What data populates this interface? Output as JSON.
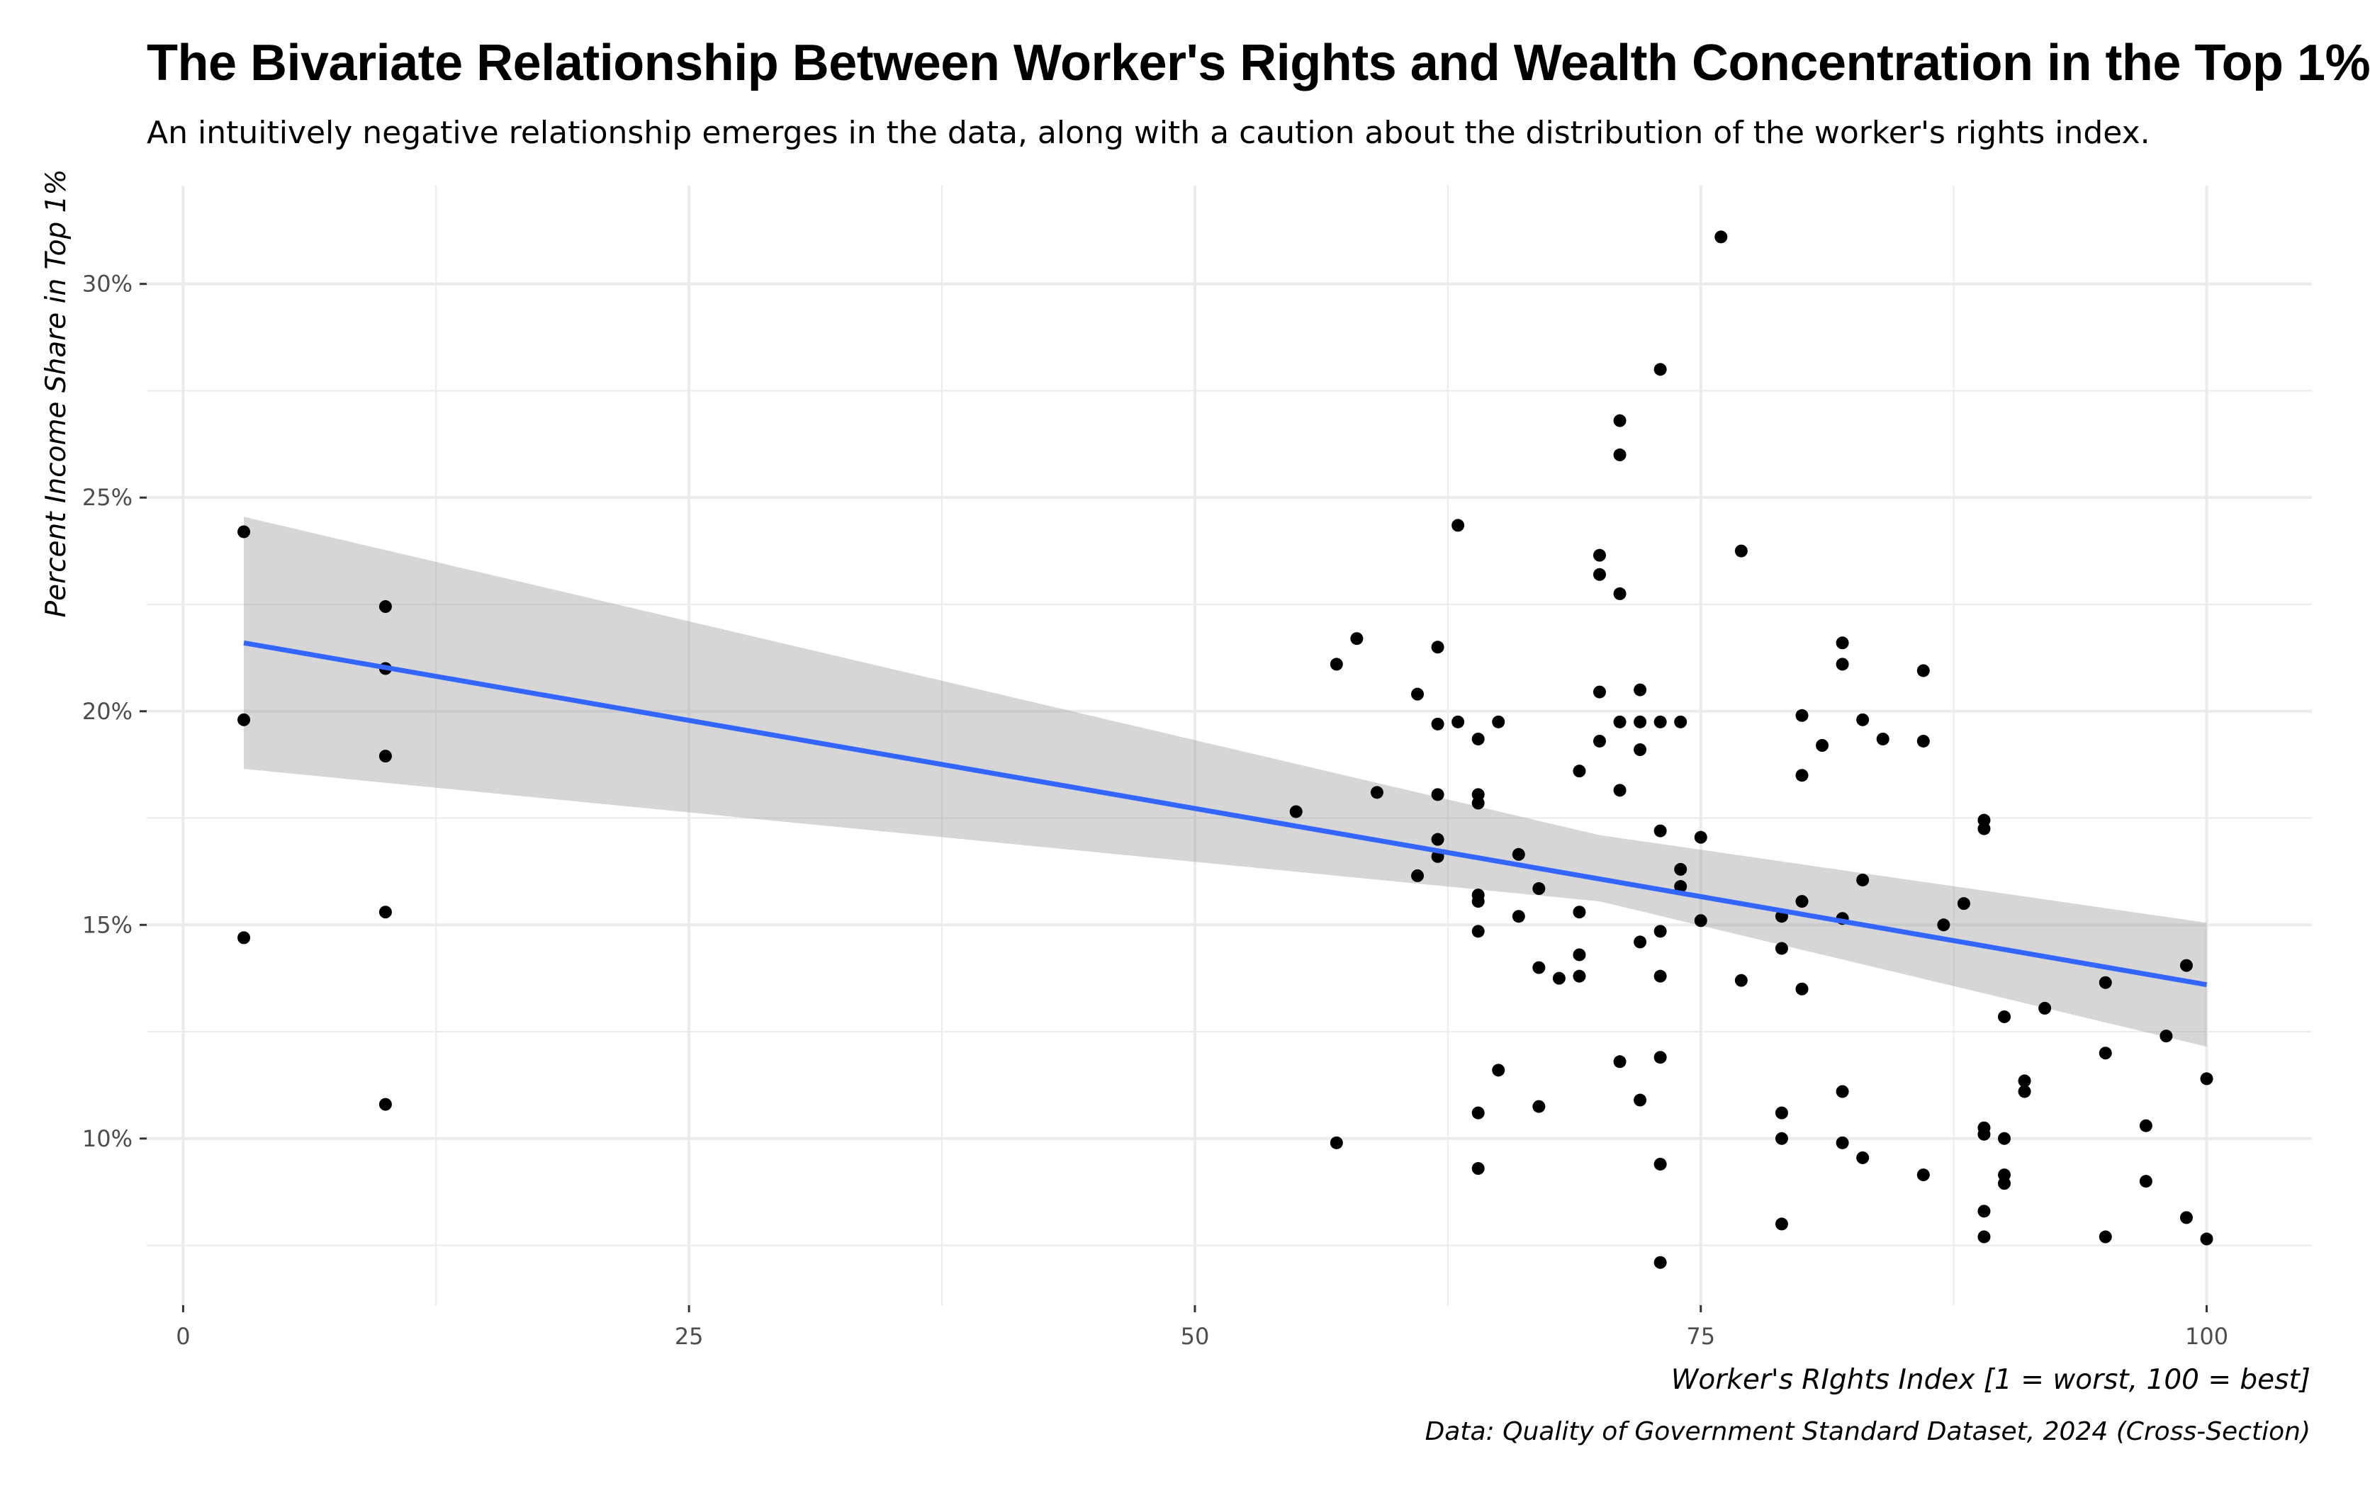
{
  "chart_data": {
    "type": "scatter",
    "title": "The Bivariate Relationship Between Worker's Rights and Wealth Concentration in the Top 1%",
    "subtitle": "An intuitively negative relationship emerges in the data, along with a caution about the distribution of the worker's rights index.",
    "xlabel": "Worker's RIghts Index [1 = worst, 100 = best]",
    "ylabel": "Percent Income Share in Top 1%",
    "caption": "Data: Quality of Government Standard Dataset, 2024 (Cross-Section)",
    "xlim": [
      -1.8,
      105.2
    ],
    "ylim": [
      6.1,
      32.3
    ],
    "xticks": [
      0,
      25,
      50,
      75,
      100
    ],
    "xtick_labels": [
      "0",
      "25",
      "50",
      "75",
      "100"
    ],
    "yticks": [
      10,
      15,
      20,
      25,
      30
    ],
    "ytick_labels": [
      "10%",
      "15%",
      "20%",
      "25%",
      "30%"
    ],
    "grid": true,
    "colors": {
      "points": "#000000",
      "fit_line": "#3366FF",
      "ribbon": "#999999",
      "grid": "#EBEBEB",
      "axis_text": "#4D4D4D"
    },
    "fit": {
      "method": "linear",
      "x": [
        3,
        100
      ],
      "y": [
        21.6,
        13.6
      ],
      "ci_lower": [
        18.65,
        12.15
      ],
      "ci_upper": [
        24.55,
        15.05
      ],
      "ci_mid_x": 70,
      "ci_mid_lower": 15.55,
      "ci_mid_upper": 17.1
    },
    "points": [
      {
        "x": 3,
        "y": 24.2
      },
      {
        "x": 3,
        "y": 19.8
      },
      {
        "x": 3,
        "y": 14.7
      },
      {
        "x": 10,
        "y": 22.45
      },
      {
        "x": 10,
        "y": 21.0
      },
      {
        "x": 10,
        "y": 18.95
      },
      {
        "x": 10,
        "y": 15.3
      },
      {
        "x": 10,
        "y": 10.8
      },
      {
        "x": 55,
        "y": 17.65
      },
      {
        "x": 57,
        "y": 21.1
      },
      {
        "x": 57,
        "y": 9.9
      },
      {
        "x": 58,
        "y": 21.7
      },
      {
        "x": 59,
        "y": 18.1
      },
      {
        "x": 61,
        "y": 20.4
      },
      {
        "x": 61,
        "y": 16.15
      },
      {
        "x": 62,
        "y": 21.5
      },
      {
        "x": 62,
        "y": 19.7
      },
      {
        "x": 62,
        "y": 18.05
      },
      {
        "x": 62,
        "y": 17.0
      },
      {
        "x": 62,
        "y": 16.6
      },
      {
        "x": 63,
        "y": 24.35
      },
      {
        "x": 63,
        "y": 19.75
      },
      {
        "x": 64,
        "y": 19.35
      },
      {
        "x": 64,
        "y": 18.05
      },
      {
        "x": 64,
        "y": 17.85
      },
      {
        "x": 64,
        "y": 15.7
      },
      {
        "x": 64,
        "y": 15.55
      },
      {
        "x": 64,
        "y": 14.85
      },
      {
        "x": 64,
        "y": 10.6
      },
      {
        "x": 64,
        "y": 9.3
      },
      {
        "x": 65,
        "y": 19.75
      },
      {
        "x": 65,
        "y": 11.6
      },
      {
        "x": 66,
        "y": 16.65
      },
      {
        "x": 66,
        "y": 15.2
      },
      {
        "x": 67,
        "y": 15.85
      },
      {
        "x": 67,
        "y": 14.0
      },
      {
        "x": 67,
        "y": 10.75
      },
      {
        "x": 68,
        "y": 13.75
      },
      {
        "x": 69,
        "y": 18.6
      },
      {
        "x": 69,
        "y": 15.3
      },
      {
        "x": 69,
        "y": 14.3
      },
      {
        "x": 69,
        "y": 13.8
      },
      {
        "x": 70,
        "y": 23.65
      },
      {
        "x": 70,
        "y": 23.2
      },
      {
        "x": 70,
        "y": 20.45
      },
      {
        "x": 70,
        "y": 19.3
      },
      {
        "x": 71,
        "y": 26.8
      },
      {
        "x": 71,
        "y": 26.0
      },
      {
        "x": 71,
        "y": 22.75
      },
      {
        "x": 71,
        "y": 19.75
      },
      {
        "x": 71,
        "y": 18.15
      },
      {
        "x": 71,
        "y": 11.8
      },
      {
        "x": 72,
        "y": 20.5
      },
      {
        "x": 72,
        "y": 19.75
      },
      {
        "x": 72,
        "y": 19.1
      },
      {
        "x": 72,
        "y": 14.6
      },
      {
        "x": 72,
        "y": 10.9
      },
      {
        "x": 73,
        "y": 28.0
      },
      {
        "x": 73,
        "y": 19.75
      },
      {
        "x": 73,
        "y": 17.2
      },
      {
        "x": 73,
        "y": 14.85
      },
      {
        "x": 73,
        "y": 13.8
      },
      {
        "x": 73,
        "y": 11.9
      },
      {
        "x": 73,
        "y": 9.4
      },
      {
        "x": 73,
        "y": 7.1
      },
      {
        "x": 74,
        "y": 19.75
      },
      {
        "x": 74,
        "y": 16.3
      },
      {
        "x": 74,
        "y": 15.9
      },
      {
        "x": 75,
        "y": 17.05
      },
      {
        "x": 75,
        "y": 15.1
      },
      {
        "x": 76,
        "y": 31.1
      },
      {
        "x": 77,
        "y": 23.75
      },
      {
        "x": 77,
        "y": 13.7
      },
      {
        "x": 79,
        "y": 15.2
      },
      {
        "x": 79,
        "y": 14.45
      },
      {
        "x": 79,
        "y": 10.6
      },
      {
        "x": 79,
        "y": 10.0
      },
      {
        "x": 79,
        "y": 8.0
      },
      {
        "x": 80,
        "y": 19.9
      },
      {
        "x": 80,
        "y": 18.5
      },
      {
        "x": 80,
        "y": 15.55
      },
      {
        "x": 80,
        "y": 13.5
      },
      {
        "x": 81,
        "y": 19.2
      },
      {
        "x": 82,
        "y": 21.6
      },
      {
        "x": 82,
        "y": 21.1
      },
      {
        "x": 82,
        "y": 15.15
      },
      {
        "x": 82,
        "y": 11.1
      },
      {
        "x": 82,
        "y": 9.9
      },
      {
        "x": 83,
        "y": 19.8
      },
      {
        "x": 83,
        "y": 16.05
      },
      {
        "x": 83,
        "y": 9.55
      },
      {
        "x": 84,
        "y": 19.35
      },
      {
        "x": 86,
        "y": 20.95
      },
      {
        "x": 86,
        "y": 19.3
      },
      {
        "x": 86,
        "y": 9.15
      },
      {
        "x": 87,
        "y": 15.0
      },
      {
        "x": 88,
        "y": 15.5
      },
      {
        "x": 89,
        "y": 17.45
      },
      {
        "x": 89,
        "y": 17.25
      },
      {
        "x": 89,
        "y": 10.25
      },
      {
        "x": 89,
        "y": 10.1
      },
      {
        "x": 89,
        "y": 8.3
      },
      {
        "x": 89,
        "y": 7.7
      },
      {
        "x": 90,
        "y": 12.85
      },
      {
        "x": 90,
        "y": 10.0
      },
      {
        "x": 90,
        "y": 9.15
      },
      {
        "x": 90,
        "y": 8.95
      },
      {
        "x": 91,
        "y": 11.35
      },
      {
        "x": 91,
        "y": 11.1
      },
      {
        "x": 92,
        "y": 13.05
      },
      {
        "x": 95,
        "y": 13.65
      },
      {
        "x": 95,
        "y": 12.0
      },
      {
        "x": 95,
        "y": 7.7
      },
      {
        "x": 97,
        "y": 10.3
      },
      {
        "x": 97,
        "y": 9.0
      },
      {
        "x": 98,
        "y": 12.4
      },
      {
        "x": 99,
        "y": 14.05
      },
      {
        "x": 99,
        "y": 8.15
      },
      {
        "x": 100,
        "y": 11.4
      },
      {
        "x": 100,
        "y": 7.65
      }
    ]
  }
}
